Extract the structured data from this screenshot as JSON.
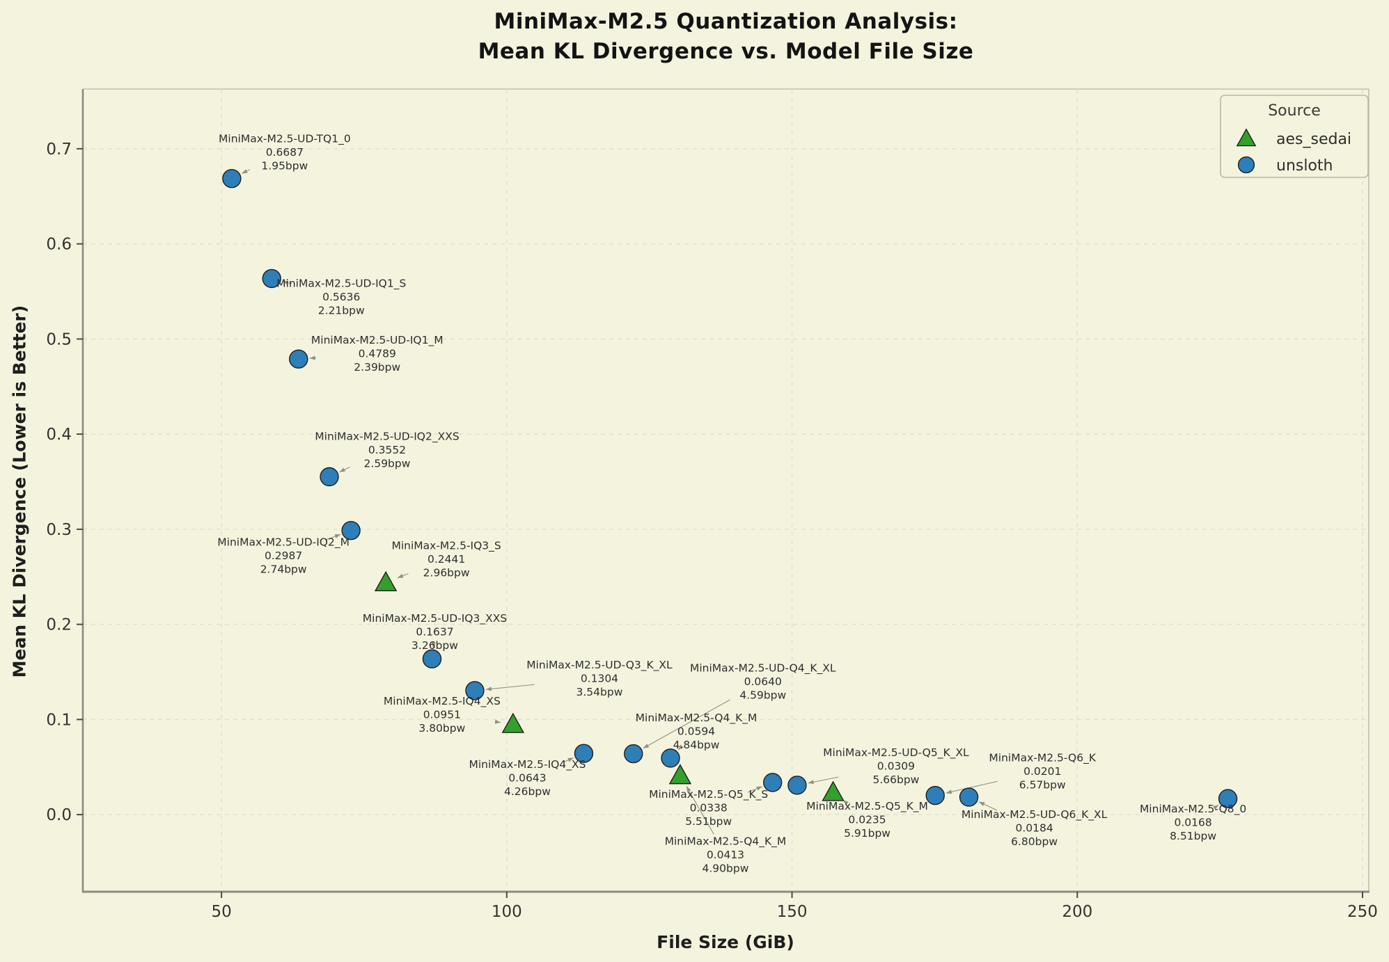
{
  "figure": {
    "title_line1": "MiniMax-M2.5 Quantization Analysis:",
    "title_line2": "Mean KL Divergence vs. Model File Size",
    "background_color": "#f4f3de"
  },
  "chart_data": {
    "type": "scatter",
    "title": "MiniMax-M2.5 Quantization Analysis: Mean KL Divergence vs. Model File Size",
    "xlabel": "File Size (GiB)",
    "ylabel": "Mean KL Divergence (Lower is Better)",
    "xlim": [
      25.7,
      251.1
    ],
    "ylim": [
      -0.0811,
      0.7628
    ],
    "x_ticks": [
      50,
      100,
      150,
      200,
      250
    ],
    "y_ticks": [
      0.0,
      0.1,
      0.2,
      0.3,
      0.4,
      0.5,
      0.6,
      0.7
    ],
    "grid": true,
    "colors": {
      "aes_sedai": "#33a02c",
      "unsloth": "#2e7eb8",
      "marker_edge": "#1f1f1f",
      "grid_line": "#e0dfd0",
      "spine_major": "#8b8b80",
      "spine_minor": "#c0bfae",
      "leader_line": "#90907f",
      "text": "#2e2e2e"
    },
    "legend": {
      "title": "Source",
      "position": "upper-right",
      "entries": [
        {
          "label": "aes_sedai",
          "marker": "triangle"
        },
        {
          "label": "unsloth",
          "marker": "circle"
        }
      ]
    },
    "series": [
      {
        "name": "unsloth",
        "marker": "circle",
        "points": [
          {
            "label": "MiniMax-M2.5-UD-TQ1_0",
            "size_gib": 51.8,
            "kl": 0.6687,
            "kl_text": "0.6687",
            "bpw_text": "1.95bpw",
            "dx": 76,
            "dy": -38
          },
          {
            "label": "MiniMax-M2.5-UD-IQ1_S",
            "size_gib": 58.8,
            "kl": 0.5636,
            "kl_text": "0.5636",
            "bpw_text": "2.21bpw",
            "dx": 100,
            "dy": 26
          },
          {
            "label": "MiniMax-M2.5-UD-IQ1_M",
            "size_gib": 63.5,
            "kl": 0.4789,
            "kl_text": "0.4789",
            "bpw_text": "2.39bpw",
            "dx": 113,
            "dy": -8
          },
          {
            "label": "MiniMax-M2.5-UD-IQ2_XXS",
            "size_gib": 68.9,
            "kl": 0.3552,
            "kl_text": "0.3552",
            "bpw_text": "2.59bpw",
            "dx": 83,
            "dy": -39
          },
          {
            "label": "MiniMax-M2.5-UD-IQ2_M",
            "size_gib": 72.7,
            "kl": 0.2987,
            "kl_text": "0.2987",
            "bpw_text": "2.74bpw",
            "dx": -97,
            "dy": 36
          },
          {
            "label": "MiniMax-M2.5-UD-IQ3_XXS",
            "size_gib": 86.9,
            "kl": 0.1637,
            "kl_text": "0.1637",
            "bpw_text": "3.26bpw",
            "dx": 4,
            "dy": -39
          },
          {
            "label": "MiniMax-M2.5-UD-Q3_K_XL",
            "size_gib": 94.4,
            "kl": 0.1304,
            "kl_text": "0.1304",
            "bpw_text": "3.54bpw",
            "dx": 179,
            "dy": -18
          },
          {
            "label": "MiniMax-M2.5-IQ4_XS",
            "size_gib": 113.5,
            "kl": 0.0643,
            "kl_text": "0.0643",
            "bpw_text": "4.26bpw",
            "dx": -81,
            "dy": 35
          },
          {
            "label": "MiniMax-M2.5-UD-Q4_K_XL",
            "size_gib": 122.2,
            "kl": 0.064,
            "kl_text": "0.0640",
            "bpw_text": "4.59bpw",
            "dx": 186,
            "dy": -104
          },
          {
            "label": "MiniMax-M2.5-Q4_K_M",
            "size_gib": 128.7,
            "kl": 0.0594,
            "kl_text": "0.0594",
            "bpw_text": "4.84bpw",
            "dx": 37,
            "dy": -39
          },
          {
            "label": "MiniMax-M2.5-Q5_K_S",
            "size_gib": 146.6,
            "kl": 0.0338,
            "kl_text": "0.0338",
            "bpw_text": "5.51bpw",
            "dx": -92,
            "dy": 36
          },
          {
            "label": "MiniMax-M2.5-UD-Q5_K_XL",
            "size_gib": 150.9,
            "kl": 0.0309,
            "kl_text": "0.0309",
            "bpw_text": "5.66bpw",
            "dx": 142,
            "dy": -28
          },
          {
            "label": "MiniMax-M2.5-Q6_K",
            "size_gib": 175.1,
            "kl": 0.0201,
            "kl_text": "0.0201",
            "bpw_text": "6.57bpw",
            "dx": 154,
            "dy": -35
          },
          {
            "label": "MiniMax-M2.5-UD-Q6_K_XL",
            "size_gib": 181.0,
            "kl": 0.0184,
            "kl_text": "0.0184",
            "bpw_text": "6.80bpw",
            "dx": 94,
            "dy": 44
          },
          {
            "label": "MiniMax-M2.5-Q8_0",
            "size_gib": 226.4,
            "kl": 0.0168,
            "kl_text": "0.0168",
            "bpw_text": "8.51bpw",
            "dx": -50,
            "dy": 34
          }
        ]
      },
      {
        "name": "aes_sedai",
        "marker": "triangle",
        "points": [
          {
            "label": "MiniMax-M2.5-IQ3_S",
            "size_gib": 78.8,
            "kl": 0.2441,
            "kl_text": "0.2441",
            "bpw_text": "2.96bpw",
            "dx": 87,
            "dy": -34
          },
          {
            "label": "MiniMax-M2.5-IQ4_XS",
            "size_gib": 101.1,
            "kl": 0.0951,
            "kl_text": "0.0951",
            "bpw_text": "3.80bpw",
            "dx": -102,
            "dy": -14
          },
          {
            "label": "MiniMax-M2.5-Q4_K_M",
            "size_gib": 130.4,
            "kl": 0.0413,
            "kl_text": "0.0413",
            "bpw_text": "4.90bpw",
            "dx": 65,
            "dy": 114
          },
          {
            "label": "MiniMax-M2.5-Q5_K_M",
            "size_gib": 157.2,
            "kl": 0.0235,
            "kl_text": "0.0235",
            "bpw_text": "5.91bpw",
            "dx": 49,
            "dy": 39
          }
        ]
      }
    ]
  }
}
